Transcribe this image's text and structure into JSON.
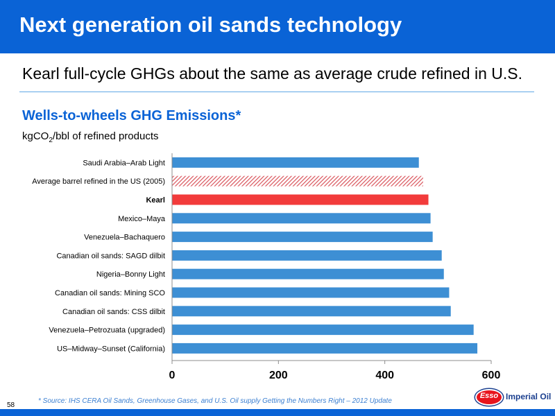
{
  "header": {
    "title": "Next generation oil sands technology"
  },
  "subtitle": "Kearl full-cycle GHGs about the same as average crude refined in U.S.",
  "chart_heading": "Wells-to-wheels GHG Emissions*",
  "unit": {
    "main": "kgCO",
    "sub": "2",
    "rest": "/bbl of refined products"
  },
  "footnote": "* Source: IHS CERA Oil Sands, Greenhouse Gases, and U.S. Oil supply Getting the Numbers Right – 2012 Update",
  "page_number": "58",
  "logo": {
    "oval_text": "Esso",
    "text": "Imperial Oil"
  },
  "colors": {
    "brand_blue": "#0a63d6",
    "bar": "#3d8fd4",
    "kearl": "#f23b3b",
    "hatch": "#d9535a",
    "logo_navy": "#1b3f8f"
  },
  "chart_data": {
    "type": "bar",
    "orientation": "horizontal",
    "title": "Wells-to-wheels GHG Emissions*",
    "xlabel": "",
    "ylabel": "kgCO2/bbl of refined products",
    "xlim": [
      0,
      600
    ],
    "xticks": [
      0,
      200,
      400,
      600
    ],
    "grid": false,
    "categories": [
      "Saudi Arabia–Arab Light",
      "Average barrel refined in the US (2005)",
      "Kearl",
      "Mexico–Maya",
      "Venezuela–Bachaquero",
      "Canadian oil sands: SAGD dilbit",
      "Nigeria–Bonny Light",
      "Canadian oil sands: Mining SCO",
      "Canadian oil sands: CSS dilbit",
      "Venezuela–Petrozuata (upgraded)",
      "US–Midway–Sunset (California)"
    ],
    "values": [
      464,
      472,
      482,
      486,
      490,
      507,
      511,
      521,
      524,
      567,
      574
    ],
    "styles": [
      "solid",
      "hatched",
      "highlight",
      "solid",
      "solid",
      "solid",
      "solid",
      "solid",
      "solid",
      "solid",
      "solid"
    ],
    "bold_labels": [
      false,
      false,
      true,
      false,
      false,
      false,
      false,
      false,
      false,
      false,
      false
    ]
  }
}
